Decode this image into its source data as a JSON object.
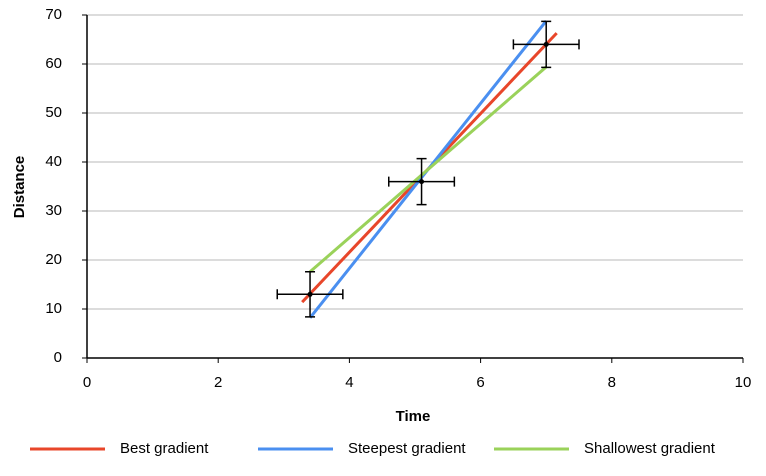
{
  "chart_data": {
    "type": "line",
    "x_label": "Time",
    "y_label": "Distance",
    "xlim": [
      0,
      10
    ],
    "xticks": [
      0,
      2,
      4,
      6,
      8,
      10
    ],
    "ylim": [
      0,
      70
    ],
    "yticks": [
      0,
      10,
      20,
      30,
      40,
      50,
      60,
      70
    ],
    "grid": true,
    "legend": "bottom",
    "series": [
      {
        "name": "Best gradient",
        "color": "#e8462a",
        "x": [
          3.28,
          7.16
        ],
        "values": [
          11.4,
          66.3
        ]
      },
      {
        "name": "Steepest gradient",
        "color": "#4a8ff0",
        "x": [
          3.4,
          7.0
        ],
        "values": [
          8.2,
          68.8
        ]
      },
      {
        "name": "Shallowest gradient",
        "color": "#9ad25a",
        "x": [
          3.4,
          7.0
        ],
        "values": [
          17.6,
          59.4
        ]
      },
      {
        "color": "#000000",
        "x": [
          3.4,
          5.1,
          7.0
        ],
        "values": [
          13,
          36,
          64
        ],
        "xerr": [
          0.5,
          0.5,
          0.5
        ],
        "yerr": [
          4.6,
          4.7,
          4.7
        ]
      }
    ]
  }
}
